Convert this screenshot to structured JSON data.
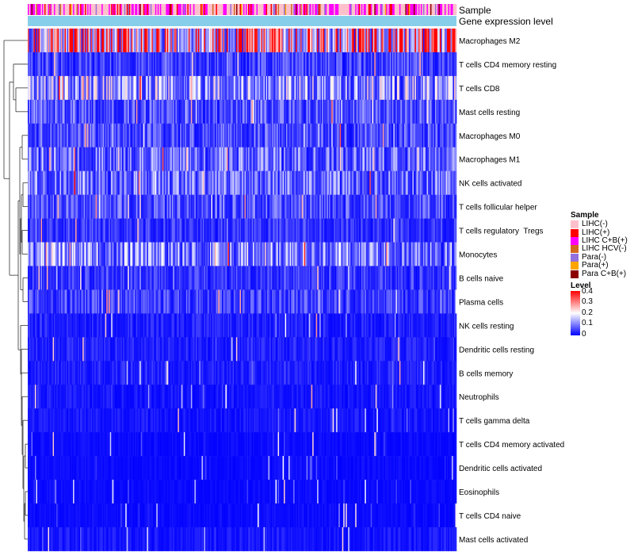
{
  "chart_data": {
    "type": "heatmap",
    "annotation_tracks": [
      "Sample",
      "Gene expression level"
    ],
    "rows": [
      "Macrophages M2",
      "T cells CD4 memory resting",
      "T cells CD8",
      "Mast cells resting",
      "Macrophages M0",
      "Macrophages M1",
      "NK cells activated",
      "T cells follicular helper",
      "T cells regulatory  Tregs",
      "Monocytes",
      "B cells naive",
      "Plasma cells",
      "NK cells resting",
      "Dendritic cells resting",
      "B cells memory",
      "Neutrophils",
      "T cells gamma delta",
      "T cells CD4 memory activated",
      "Dendritic cells activated",
      "Eosinophils",
      "T cells CD4 naive",
      "Mast cells activated"
    ],
    "row_mean_level": [
      0.3,
      0.06,
      0.14,
      0.08,
      0.07,
      0.1,
      0.1,
      0.07,
      0.05,
      0.12,
      0.05,
      0.06,
      0.03,
      0.03,
      0.03,
      0.02,
      0.02,
      0.01,
      0.01,
      0.01,
      0.01,
      0.02
    ],
    "legend_sample": {
      "title": "Sample",
      "items": [
        {
          "label": "LIHC(-)",
          "color": "#ffc0cb"
        },
        {
          "label": "LIHC(+)",
          "color": "#ff0000"
        },
        {
          "label": "LIHC C+B(+)",
          "color": "#ff00ff"
        },
        {
          "label": "LIHC HCV(-)",
          "color": "#d2691e"
        },
        {
          "label": "Para(-)",
          "color": "#9370db"
        },
        {
          "label": "Para(+)",
          "color": "#ffa500"
        },
        {
          "label": "Para C+B(+)",
          "color": "#8b0000"
        }
      ]
    },
    "legend_level": {
      "title": "Level",
      "ticks": [
        "0.4",
        "0.3",
        "0.2",
        "0.1",
        "0"
      ],
      "range": [
        0,
        0.4
      ],
      "colors": {
        "low": "#0000ff",
        "mid": "#ffffff",
        "high": "#ff0000"
      }
    },
    "expression_track_color": "#87ceeb"
  }
}
